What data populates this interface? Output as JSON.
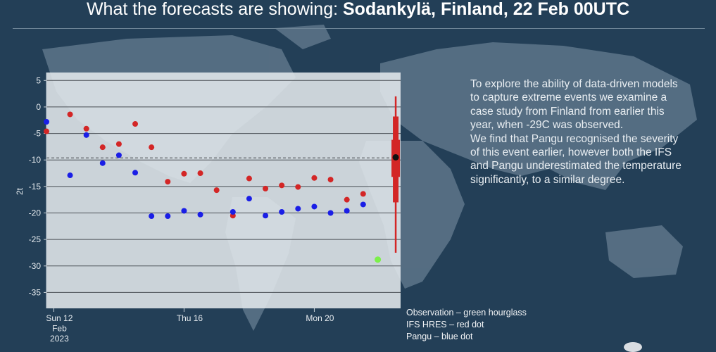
{
  "slide": {
    "title_prefix": "What the forecasts are showing: ",
    "title_bold": "Sodankylä,  Finland, 22 Feb 00UTC",
    "paragraph1": "To explore the ability of data-driven models to capture extreme events we examine a case study from Finland from earlier this year, when -29C was observed.",
    "paragraph2": "We find that Pangu recognised the severity of this event earlier, however both the IFS and Pangu underestimated the temperature significantly, to a similar degree.",
    "legend": [
      "Observation – green hourglass",
      "IFS HRES – red dot",
      "Pangu – blue dot"
    ]
  },
  "chart_data": {
    "type": "scatter",
    "ylabel": "2t",
    "ylim": [
      -38,
      6.5
    ],
    "yticks": [
      5,
      0,
      -5,
      -10,
      -15,
      -20,
      -25,
      -30,
      -35
    ],
    "reference_line": -9.6,
    "x_tick_labels": [
      {
        "x": 1,
        "lines": [
          "Sun 12",
          "Feb",
          "2023"
        ]
      },
      {
        "x": 9,
        "lines": [
          "Thu 16"
        ]
      },
      {
        "x": 17,
        "lines": [
          "Mon 20"
        ]
      }
    ],
    "xlim": [
      0.55,
      22.3
    ],
    "series": [
      {
        "color": "#d32626",
        "points": [
          [
            0.55,
            -4.6
          ],
          [
            2,
            -1.4
          ],
          [
            3,
            -4.1
          ],
          [
            4,
            -7.6
          ],
          [
            5,
            -7.0
          ],
          [
            6,
            -3.2
          ],
          [
            7,
            -7.6
          ],
          [
            8,
            -14.1
          ],
          [
            9,
            -12.6
          ],
          [
            10,
            -12.5
          ],
          [
            11,
            -15.7
          ],
          [
            12,
            -20.5
          ],
          [
            13,
            -13.5
          ],
          [
            14,
            -15.4
          ],
          [
            15,
            -14.8
          ],
          [
            16,
            -15.1
          ],
          [
            17,
            -13.4
          ],
          [
            18,
            -13.7
          ],
          [
            19,
            -17.5
          ],
          [
            20,
            -16.4
          ]
        ]
      },
      {
        "color": "#1a1ee6",
        "points": [
          [
            0.55,
            -2.8
          ],
          [
            2,
            -12.9
          ],
          [
            3,
            -5.3
          ],
          [
            4,
            -10.6
          ],
          [
            5,
            -9.1
          ],
          [
            6,
            -12.4
          ],
          [
            7,
            -20.6
          ],
          [
            8,
            -20.6
          ],
          [
            9,
            -19.6
          ],
          [
            10,
            -20.3
          ],
          [
            12,
            -19.8
          ],
          [
            13,
            -17.3
          ],
          [
            14,
            -20.5
          ],
          [
            15,
            -19.8
          ],
          [
            16,
            -19.2
          ],
          [
            17,
            -18.8
          ],
          [
            18,
            -20.0
          ],
          [
            19,
            -19.6
          ],
          [
            20,
            -18.4
          ]
        ]
      }
    ],
    "observation": {
      "x": 20.9,
      "y": -28.8,
      "color": "#7cf04a"
    },
    "box": {
      "x": 22.0,
      "color": "#d32626",
      "whisker_low": -27.5,
      "q1": -18.0,
      "q1_inner": -13.2,
      "q3_inner": -6.2,
      "q3": -1.8,
      "whisker_high": 2.0,
      "median": -9.5
    }
  }
}
